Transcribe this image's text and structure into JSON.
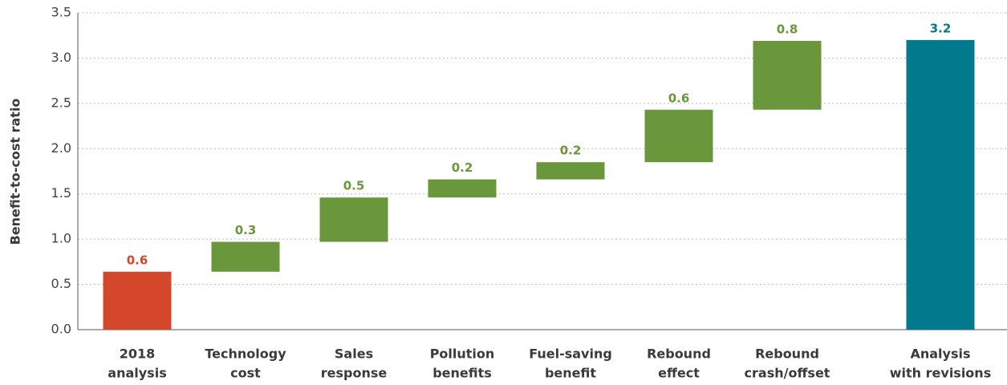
{
  "chart_data": {
    "type": "waterfall",
    "y_label": "Benefit-to-cost ratio",
    "categories": [
      [
        "2018",
        "analysis"
      ],
      [
        "Technology",
        "cost"
      ],
      [
        "Sales",
        "response"
      ],
      [
        "Pollution",
        "benefits"
      ],
      [
        "Fuel-saving",
        "benefit"
      ],
      [
        "Rebound",
        "effect"
      ],
      [
        "Rebound",
        "crash/offset"
      ],
      [
        "Analysis",
        "with revisions"
      ]
    ],
    "measures": [
      "absolute",
      "relative",
      "relative",
      "relative",
      "relative",
      "relative",
      "relative",
      "total"
    ],
    "values": [
      0.64,
      0.33,
      0.49,
      0.2,
      0.19,
      0.58,
      0.76,
      3.2
    ],
    "value_labels": [
      "0.6",
      "0.3",
      "0.5",
      "0.2",
      "0.2",
      "0.6",
      "0.8",
      "3.2"
    ],
    "colors": [
      "#d4472a",
      "#6a963c",
      "#6a963c",
      "#6a963c",
      "#6a963c",
      "#6a963c",
      "#6a963c",
      "#007a8c"
    ],
    "ylim": [
      0,
      3.5
    ],
    "yticks": [
      {
        "value": 0,
        "label": "0.0"
      },
      0.5,
      {
        "value": 1,
        "label": "1.0"
      },
      1.5,
      {
        "value": 2,
        "label": "2.0"
      },
      2.5,
      {
        "value": 3,
        "label": "3.0"
      },
      3.5
    ],
    "grid": true
  }
}
